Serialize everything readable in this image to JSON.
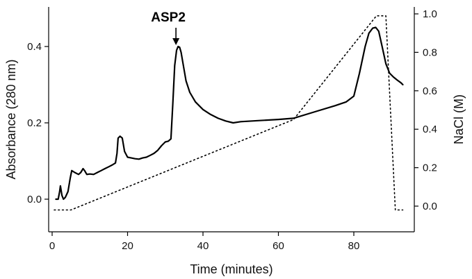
{
  "chart_data": {
    "type": "line",
    "xlabel": "Time (minutes)",
    "ylabel": "Absorbance (280 nm)",
    "y2label": "NaCl (M)",
    "xlim": [
      -1,
      95
    ],
    "ylim": [
      -0.08,
      0.5
    ],
    "y2lim": [
      -0.12,
      1.05
    ],
    "xticks": [
      0,
      20,
      40,
      60,
      80
    ],
    "yticks": [
      0.0,
      0.2,
      0.4
    ],
    "y2ticks": [
      0.0,
      0.2,
      0.4,
      0.6,
      0.8,
      1.0
    ],
    "grid": false,
    "annotation": {
      "text": "ASP2",
      "x": 33.2,
      "y": 0.4
    },
    "series": [
      {
        "axis": "left",
        "style": "solid",
        "color": "#000000",
        "x": [
          1.0,
          1.6,
          2.0,
          2.2,
          2.6,
          3.0,
          3.5,
          4.2,
          4.8,
          5.2,
          6.0,
          7.0,
          7.6,
          8.2,
          8.6,
          9.2,
          10.0,
          11.0,
          12.0,
          13.0,
          14.0,
          15.0,
          16.0,
          16.8,
          17.2,
          17.5,
          18.0,
          18.6,
          19.2,
          20.0,
          21.0,
          22.0,
          23.0,
          24.0,
          25.0,
          26.0,
          27.0,
          28.0,
          29.0,
          30.0,
          30.8,
          31.5,
          32.0,
          32.5,
          33.0,
          33.4,
          33.8,
          34.2,
          34.8,
          35.5,
          36.5,
          38.0,
          40.0,
          42.0,
          44.0,
          46.0,
          48.0,
          50.0,
          55.0,
          60.0,
          64.0,
          70.0,
          75.0,
          78.0,
          80.0,
          81.5,
          83.0,
          84.0,
          85.0,
          85.8,
          86.6,
          87.5,
          88.5,
          89.5,
          90.5,
          91.5,
          92.5,
          93.0
        ],
        "y": [
          0.0,
          0.0,
          0.02,
          0.035,
          0.01,
          0.0,
          0.005,
          0.02,
          0.055,
          0.075,
          0.07,
          0.065,
          0.07,
          0.08,
          0.075,
          0.065,
          0.066,
          0.065,
          0.07,
          0.075,
          0.08,
          0.085,
          0.09,
          0.095,
          0.12,
          0.16,
          0.165,
          0.16,
          0.125,
          0.11,
          0.108,
          0.106,
          0.105,
          0.108,
          0.11,
          0.115,
          0.12,
          0.128,
          0.14,
          0.15,
          0.152,
          0.158,
          0.25,
          0.35,
          0.39,
          0.4,
          0.398,
          0.385,
          0.35,
          0.31,
          0.28,
          0.255,
          0.235,
          0.222,
          0.212,
          0.205,
          0.2,
          0.203,
          0.206,
          0.209,
          0.212,
          0.23,
          0.245,
          0.255,
          0.27,
          0.33,
          0.4,
          0.435,
          0.448,
          0.45,
          0.44,
          0.4,
          0.355,
          0.33,
          0.32,
          0.312,
          0.305,
          0.3
        ]
      },
      {
        "axis": "right",
        "style": "dotted",
        "color": "#000000",
        "x": [
          -1.0,
          5.0,
          64.0,
          86.0,
          88.5,
          91.0,
          93.0
        ],
        "y": [
          -0.02,
          -0.02,
          0.45,
          0.99,
          0.99,
          -0.02,
          -0.02
        ]
      }
    ]
  }
}
